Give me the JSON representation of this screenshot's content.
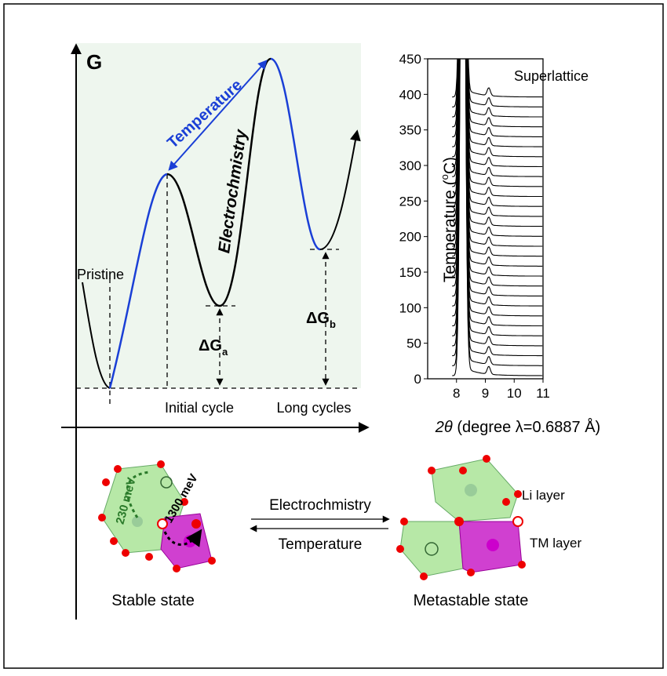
{
  "energy_diagram": {
    "y_axis_label": "G",
    "pristine": "Pristine",
    "temperature": "Temperature",
    "electrochemistry": "Electrochmistry",
    "delta_g_a": {
      "symbol": "ΔG",
      "subscript": "a"
    },
    "delta_g_b": {
      "symbol": "ΔG",
      "subscript": "b"
    },
    "initial_cycle": "Initial cycle",
    "long_cycles": "Long cycles"
  },
  "xrd_panel": {
    "y_label": {
      "text": "Temperature (",
      "superscript": "o",
      "unit": "C)"
    },
    "x_label": {
      "symbol": "2θ",
      "text": "(degree λ=0.6887 Å)"
    },
    "annotation": "Superlattice",
    "xlim": [
      7,
      11
    ],
    "ylim": [
      0,
      450
    ],
    "xticks": [
      8,
      9,
      10,
      11
    ],
    "yticks": [
      0,
      50,
      100,
      150,
      200,
      250,
      300,
      350,
      400,
      450
    ]
  },
  "structures": {
    "stable": "Stable state",
    "metastable": "Metastable state",
    "forward": "Electrochmistry",
    "backward": "Temperature",
    "li_layer": "Li layer",
    "tm_layer": "TM layer",
    "barrier_1": "230 meV",
    "barrier_2": "1300 meV"
  }
}
